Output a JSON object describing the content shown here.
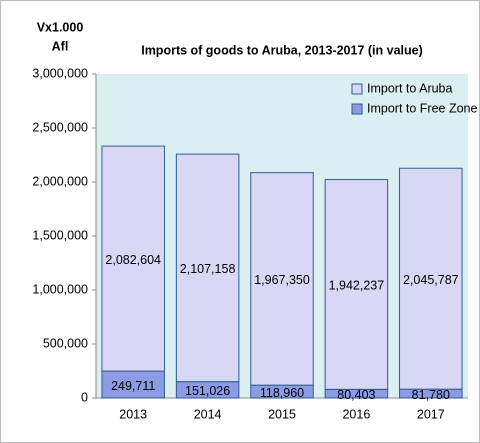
{
  "chart_data": {
    "type": "stacked_bar",
    "title": "Imports of goods to Aruba, 2013-2017 (in value)",
    "y_axis_label_line1": "Vx1.000",
    "y_axis_label_line2": "Afl",
    "categories": [
      "2013",
      "2014",
      "2015",
      "2016",
      "2017"
    ],
    "series": [
      {
        "name": "Import to Free  Zone Aruba",
        "color": "#8d9ae6",
        "values": [
          249711,
          151026,
          118960,
          80403,
          81780
        ],
        "value_labels": [
          "249,711",
          "151,026",
          "118,960",
          "80,403",
          "81,780"
        ]
      },
      {
        "name": "Import to Aruba",
        "color": "#d8d8f6",
        "values": [
          2082604,
          2107158,
          1967350,
          1942237,
          2045787
        ],
        "value_labels": [
          "2,082,604",
          "2,107,158",
          "1,967,350",
          "1,942,237",
          "2,045,787"
        ]
      }
    ],
    "ylim": [
      0,
      3000000
    ],
    "yticks": [
      0,
      {
        "value": 500000,
        "label": "500,000"
      },
      {
        "value": 1000000,
        "label": "1,000,000"
      },
      {
        "value": 1500000,
        "label": "1,500,000"
      },
      {
        "value": 2000000,
        "label": "2,000,000"
      },
      {
        "value": 2500000,
        "label": "2,500,000"
      },
      {
        "value": 3000000,
        "label": "3,000,000"
      }
    ],
    "legend_position": "top-right"
  }
}
